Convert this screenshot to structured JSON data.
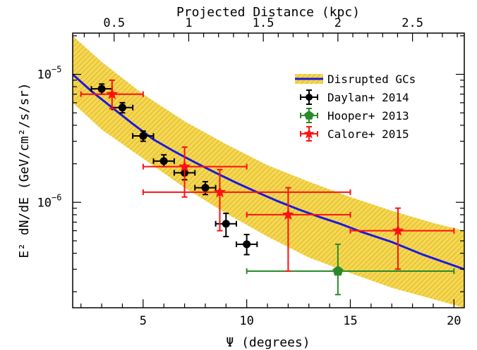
{
  "chart_data": {
    "type": "scatter",
    "title": "",
    "xlabel": "Ψ (degrees)",
    "ylabel": "E² dN/dE (GeV/cm²/s/sr)",
    "top_xlabel": "Projected Distance (kpc)",
    "xlim": [
      1.6,
      20.5
    ],
    "ylim": [
      1.5e-07,
      2.1e-05
    ],
    "yscale": "log",
    "grid": false,
    "legend_position": "top-right",
    "x_ticks": [
      5,
      10,
      15,
      20
    ],
    "x_tick_labels": [
      "5",
      "10",
      "15",
      "20"
    ],
    "top_x_ticks": [
      0.5,
      1,
      1.5,
      2,
      2.5
    ],
    "top_x_tick_labels": [
      "0.5",
      "1",
      "1.5",
      "2",
      "2.5"
    ],
    "y_tick_labels": [
      {
        "value": 1e-06,
        "label": "10",
        "exp": "−6"
      },
      {
        "value": 1e-05,
        "label": "10",
        "exp": "−5"
      }
    ],
    "band": {
      "name": "Disrupted GCs",
      "fill": "#f2d24a",
      "hatch": "#e0b400",
      "line_color": "#1a1ae0",
      "x": [
        1.6,
        3.0,
        5.0,
        7.0,
        9.0,
        11.0,
        13.0,
        15.0,
        17.0,
        19.0,
        20.5
      ],
      "upper": [
        2e-05,
        1.25e-05,
        7e-06,
        4.3e-06,
        2.85e-06,
        1.95e-06,
        1.45e-06,
        1.1e-06,
        8.6e-07,
        6.9e-07,
        6e-07
      ],
      "lower": [
        6e-06,
        3.7e-06,
        2.2e-06,
        1.3e-06,
        8.2e-07,
        5.4e-07,
        3.7e-07,
        2.8e-07,
        2.15e-07,
        1.75e-07,
        1.5e-07
      ],
      "median_x": [
        1.6,
        2.5,
        3.5,
        4.5,
        5.5,
        6.5,
        7.5,
        8.5,
        9.5,
        10.5,
        11.5,
        12.5,
        13.5,
        14.5,
        15.5,
        17.0,
        18.5,
        20.5
      ],
      "median_y": [
        1e-05,
        7.4e-06,
        5.5e-06,
        4.1e-06,
        3.1e-06,
        2.5e-06,
        2.05e-06,
        1.7e-06,
        1.42e-06,
        1.2e-06,
        1.02e-06,
        8.8e-07,
        7.7e-07,
        6.8e-07,
        5.9e-07,
        4.9e-07,
        3.9e-07,
        3e-07
      ]
    },
    "series": [
      {
        "name": "Daylan+ 2014",
        "color": "#000000",
        "marker": "circle",
        "points": [
          {
            "x": 3.0,
            "y": 7.7e-06,
            "xlo": 2.5,
            "xhi": 3.5,
            "ylo": 7e-06,
            "yhi": 8.4e-06
          },
          {
            "x": 4.0,
            "y": 5.5e-06,
            "xlo": 3.5,
            "xhi": 4.5,
            "ylo": 5e-06,
            "yhi": 6e-06
          },
          {
            "x": 5.0,
            "y": 3.3e-06,
            "xlo": 4.5,
            "xhi": 5.5,
            "ylo": 3e-06,
            "yhi": 3.6e-06
          },
          {
            "x": 6.0,
            "y": 2.1e-06,
            "xlo": 5.5,
            "xhi": 6.5,
            "ylo": 1.9e-06,
            "yhi": 2.35e-06
          },
          {
            "x": 7.0,
            "y": 1.7e-06,
            "xlo": 6.5,
            "xhi": 7.5,
            "ylo": 1.5e-06,
            "yhi": 1.9e-06
          },
          {
            "x": 8.0,
            "y": 1.3e-06,
            "xlo": 7.5,
            "xhi": 8.5,
            "ylo": 1.15e-06,
            "yhi": 1.45e-06
          },
          {
            "x": 9.0,
            "y": 6.8e-07,
            "xlo": 8.5,
            "xhi": 9.5,
            "ylo": 5.4e-07,
            "yhi": 8.2e-07
          },
          {
            "x": 10.0,
            "y": 4.7e-07,
            "xlo": 9.5,
            "xhi": 10.5,
            "ylo": 3.9e-07,
            "yhi": 5.6e-07
          }
        ]
      },
      {
        "name": "Hooper+ 2013",
        "color": "#2a8a2a",
        "marker": "pentagon",
        "points": [
          {
            "x": 14.4,
            "y": 2.9e-07,
            "xlo": 10.0,
            "xhi": 20.0,
            "ylo": 1.9e-07,
            "yhi": 4.7e-07
          }
        ]
      },
      {
        "name": "Calore+ 2015",
        "color": "#ff1010",
        "marker": "star",
        "points": [
          {
            "x": 3.5,
            "y": 7e-06,
            "xlo": 2.0,
            "xhi": 5.0,
            "ylo": 5.4e-06,
            "yhi": 9e-06
          },
          {
            "x": 7.0,
            "y": 1.9e-06,
            "xlo": 5.0,
            "xhi": 10.0,
            "ylo": 1.1e-06,
            "yhi": 2.7e-06
          },
          {
            "x": 8.7,
            "y": 1.2e-06,
            "xlo": 5.0,
            "xhi": 15.0,
            "ylo": 6e-07,
            "yhi": 1.8e-06
          },
          {
            "x": 12.0,
            "y": 8e-07,
            "xlo": 10.0,
            "xhi": 15.0,
            "ylo": 2.9e-07,
            "yhi": 1.3e-06
          },
          {
            "x": 17.3,
            "y": 6e-07,
            "xlo": 15.0,
            "xhi": 20.0,
            "ylo": 3e-07,
            "yhi": 9e-07
          }
        ]
      }
    ]
  }
}
